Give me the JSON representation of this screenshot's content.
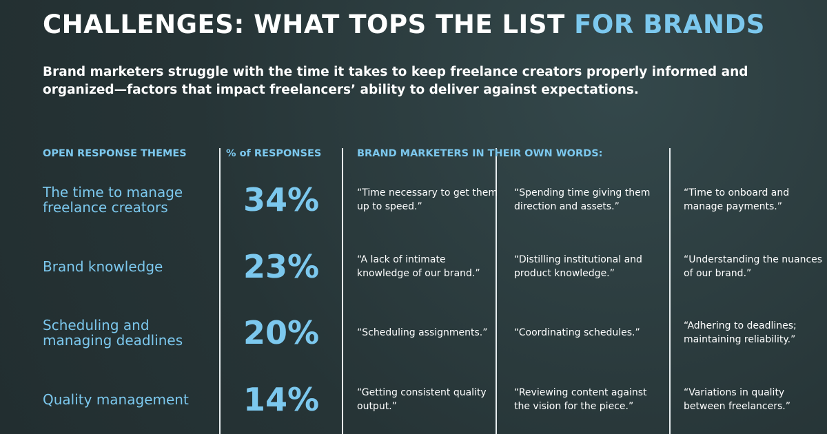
{
  "header": {
    "title": "CHALLENGES: WHAT TOPS THE LIST",
    "title_highlight": "FOR BRANDS",
    "subtitle": "Brand marketers struggle with the time it takes to keep freelance creators properly informed and organized—factors that impact freelancers’ ability to deliver against expectations."
  },
  "table": {
    "columns": [
      "OPEN RESPONSE THEMES",
      "% of RESPONSES",
      "BRAND MARKETERS IN THEIR OWN WORDS:"
    ],
    "rows": [
      {
        "theme": "The time to manage freelance creators",
        "percent": "34%",
        "quotes": [
          "“Time necessary to get them up to speed.”",
          "“Spending time giving them direction and assets.”",
          "“Time to onboard and manage payments.”"
        ]
      },
      {
        "theme": "Brand knowledge",
        "percent": "23%",
        "quotes": [
          "“A lack of intimate knowledge of our brand.”",
          "“Distilling institutional and product knowledge.”",
          "“Understanding the nuances of our brand.”"
        ]
      },
      {
        "theme": "Scheduling and managing deadlines",
        "percent": "20%",
        "quotes": [
          "“Scheduling assignments.”",
          "“Coordinating schedules.”",
          "“Adhering to deadlines; maintaining reliability.”"
        ]
      },
      {
        "theme": "Quality management",
        "percent": "14%",
        "quotes": [
          "“Getting consistent quality output.”",
          "“Reviewing content against the vision for the piece.”",
          "“Variations in quality between freelancers.”"
        ]
      }
    ]
  }
}
